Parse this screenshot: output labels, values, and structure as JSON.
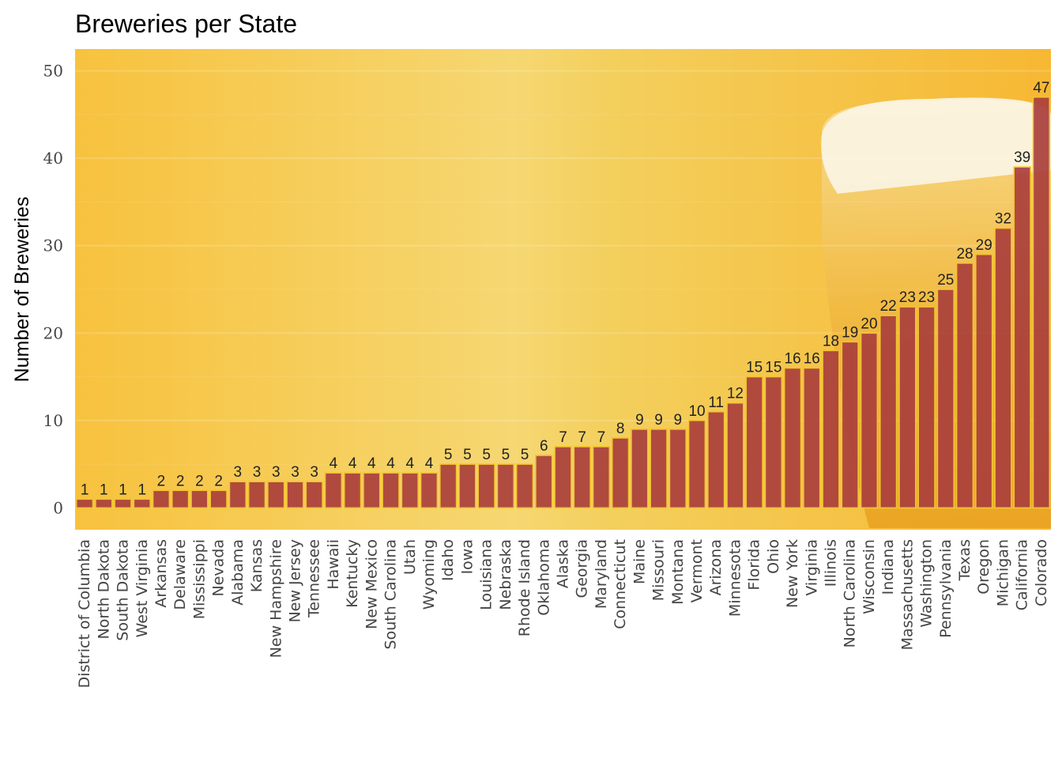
{
  "chart_data": {
    "type": "bar",
    "title": "Breweries per State",
    "xlabel": "",
    "ylabel": "Number of Breweries",
    "ylim": [
      -2.5,
      52.5
    ],
    "yticks": [
      0,
      10,
      20,
      30,
      40,
      50
    ],
    "grid": true,
    "legend": "none",
    "bar_fill": "#a93f3c",
    "bar_outline": "#f2c330",
    "background_color": "#f7c84a",
    "categories": [
      "District of Columbia",
      "North Dakota",
      "South Dakota",
      "West Virginia",
      "Arkansas",
      "Delaware",
      "Mississippi",
      "Nevada",
      "Alabama",
      "Kansas",
      "New Hampshire",
      "New Jersey",
      "Tennessee",
      "Hawaii",
      "Kentucky",
      "New Mexico",
      "South Carolina",
      "Utah",
      "Wyoming",
      "Idaho",
      "Iowa",
      "Louisiana",
      "Nebraska",
      "Rhode Island",
      "Oklahoma",
      "Alaska",
      "Georgia",
      "Maryland",
      "Connecticut",
      "Maine",
      "Missouri",
      "Montana",
      "Vermont",
      "Arizona",
      "Minnesota",
      "Florida",
      "Ohio",
      "New York",
      "Virginia",
      "Illinois",
      "North Carolina",
      "Wisconsin",
      "Indiana",
      "Massachusetts",
      "Washington",
      "Pennsylvania",
      "Texas",
      "Oregon",
      "Michigan",
      "California",
      "Colorado"
    ],
    "values": [
      1,
      1,
      1,
      1,
      2,
      2,
      2,
      2,
      3,
      3,
      3,
      3,
      3,
      4,
      4,
      4,
      4,
      4,
      4,
      5,
      5,
      5,
      5,
      5,
      6,
      7,
      7,
      7,
      8,
      9,
      9,
      9,
      10,
      11,
      12,
      15,
      15,
      16,
      16,
      18,
      19,
      20,
      22,
      23,
      23,
      25,
      28,
      29,
      32,
      39,
      47
    ]
  }
}
